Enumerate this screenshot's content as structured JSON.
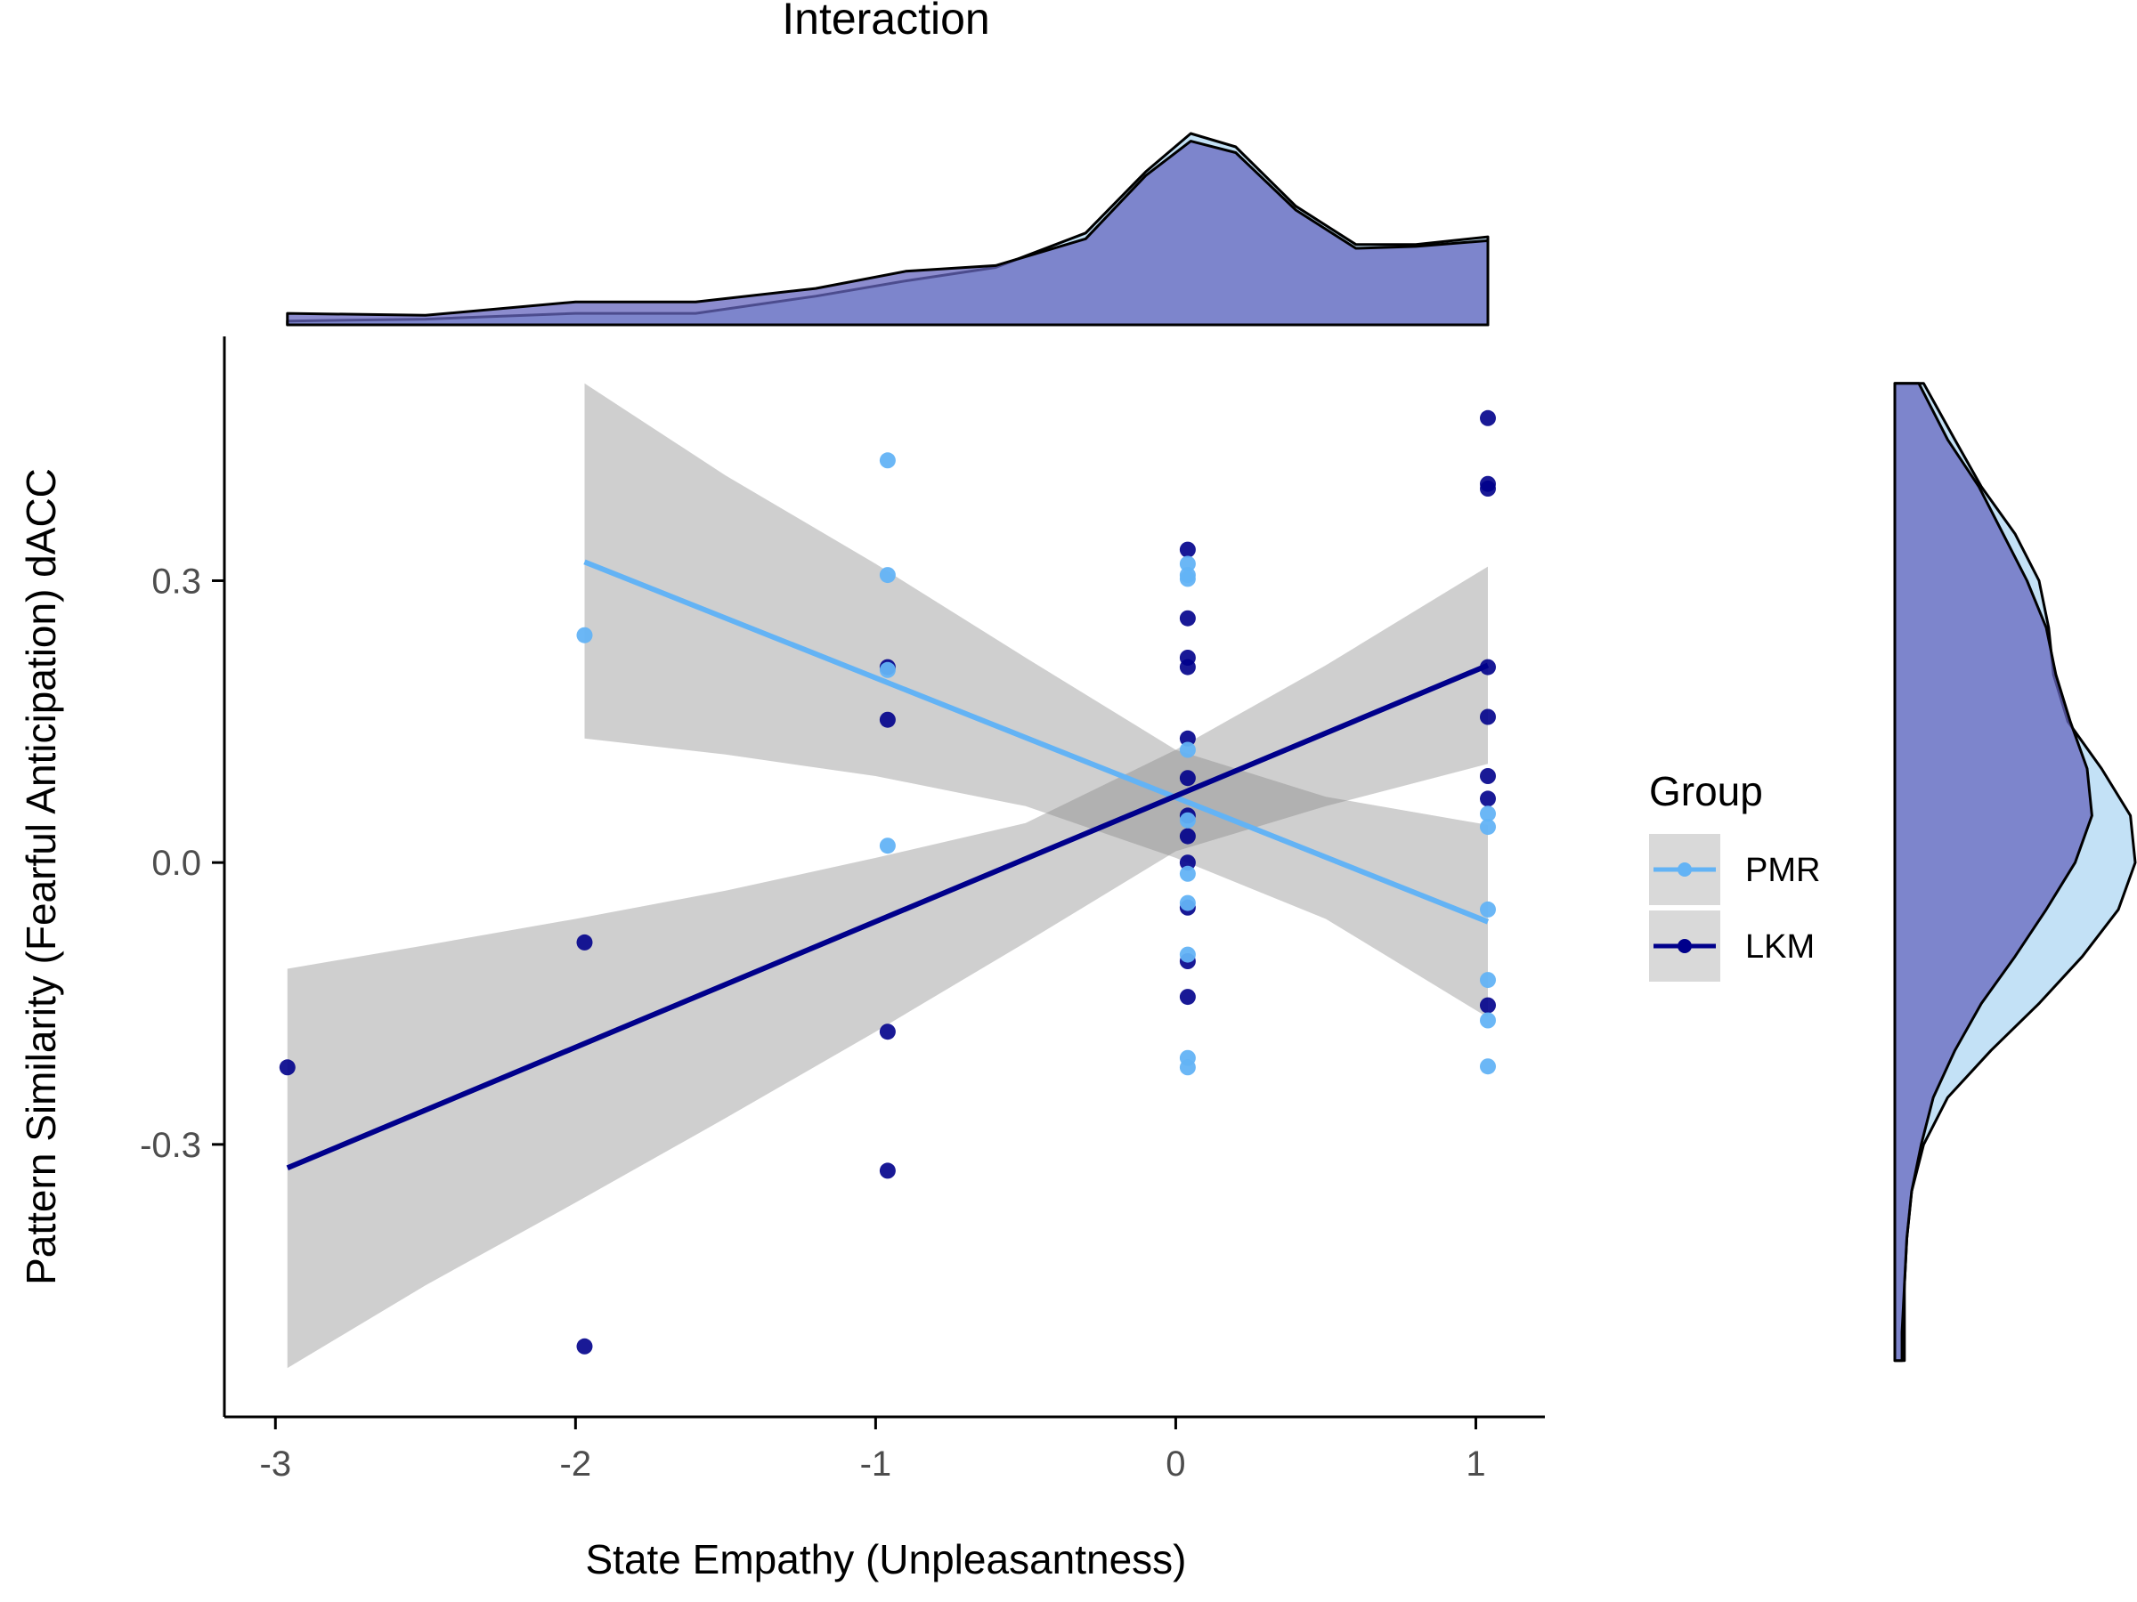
{
  "chart_data": {
    "type": "scatter",
    "title": "Interaction",
    "xlabel": "State Empathy (Unpleasantness)",
    "ylabel": "Pattern Similarity (Fearful Anticipation) dACC",
    "xlim": [
      -3.17,
      1.23
    ],
    "ylim": [
      -0.59,
      0.56
    ],
    "x_ticks": [
      -3,
      -2,
      -1,
      0,
      1
    ],
    "x_tick_labels": [
      "-3",
      "-2",
      "-1",
      "0",
      "1"
    ],
    "y_ticks": [
      -0.3,
      0.0,
      0.3
    ],
    "y_tick_labels": [
      "-0.3",
      "0.0",
      "0.3"
    ],
    "grid": false,
    "legend": {
      "title": "Group",
      "position": "right",
      "entries": [
        {
          "label": "PMR",
          "color": "#63b3f5"
        },
        {
          "label": "LKM",
          "color": "#00008b"
        }
      ]
    },
    "series": [
      {
        "name": "PMR",
        "color": "#63b3f5",
        "points": [
          {
            "x": -1.97,
            "y": 0.242
          },
          {
            "x": -0.96,
            "y": 0.428
          },
          {
            "x": -0.96,
            "y": 0.306
          },
          {
            "x": -0.96,
            "y": 0.205
          },
          {
            "x": -0.96,
            "y": 0.018
          },
          {
            "x": 0.04,
            "y": 0.318
          },
          {
            "x": 0.04,
            "y": 0.306
          },
          {
            "x": 0.04,
            "y": 0.302
          },
          {
            "x": 0.04,
            "y": 0.12
          },
          {
            "x": 0.04,
            "y": 0.045
          },
          {
            "x": 0.04,
            "y": -0.012
          },
          {
            "x": 0.04,
            "y": -0.043
          },
          {
            "x": 0.04,
            "y": -0.098
          },
          {
            "x": 0.04,
            "y": -0.208
          },
          {
            "x": 0.04,
            "y": -0.218
          },
          {
            "x": 1.04,
            "y": 0.052
          },
          {
            "x": 1.04,
            "y": 0.038
          },
          {
            "x": 1.04,
            "y": -0.05
          },
          {
            "x": 1.04,
            "y": -0.125
          },
          {
            "x": 1.04,
            "y": -0.168
          },
          {
            "x": 1.04,
            "y": -0.217
          }
        ],
        "fit": {
          "x": [
            -1.97,
            1.04
          ],
          "y": [
            0.32,
            -0.063
          ]
        },
        "ci_band": {
          "x": [
            -1.97,
            -1.5,
            -1.0,
            -0.5,
            0.0,
            0.5,
            1.04
          ],
          "lower": [
            0.132,
            0.115,
            0.092,
            0.06,
            0.005,
            -0.06,
            -0.165
          ],
          "upper": [
            0.51,
            0.412,
            0.318,
            0.218,
            0.12,
            0.07,
            0.04
          ]
        }
      },
      {
        "name": "LKM",
        "color": "#00008b",
        "points": [
          {
            "x": -2.96,
            "y": -0.218
          },
          {
            "x": -1.97,
            "y": -0.085
          },
          {
            "x": -1.97,
            "y": -0.515
          },
          {
            "x": -0.96,
            "y": 0.208
          },
          {
            "x": -0.96,
            "y": 0.152
          },
          {
            "x": -0.96,
            "y": -0.18
          },
          {
            "x": -0.96,
            "y": -0.328
          },
          {
            "x": 0.04,
            "y": 0.333
          },
          {
            "x": 0.04,
            "y": 0.26
          },
          {
            "x": 0.04,
            "y": 0.218
          },
          {
            "x": 0.04,
            "y": 0.208
          },
          {
            "x": 0.04,
            "y": 0.132
          },
          {
            "x": 0.04,
            "y": 0.09
          },
          {
            "x": 0.04,
            "y": 0.05
          },
          {
            "x": 0.04,
            "y": 0.028
          },
          {
            "x": 0.04,
            "y": 0.0
          },
          {
            "x": 0.04,
            "y": -0.048
          },
          {
            "x": 0.04,
            "y": -0.105
          },
          {
            "x": 0.04,
            "y": -0.143
          },
          {
            "x": 1.04,
            "y": 0.473
          },
          {
            "x": 1.04,
            "y": 0.403
          },
          {
            "x": 1.04,
            "y": 0.398
          },
          {
            "x": 1.04,
            "y": 0.208
          },
          {
            "x": 1.04,
            "y": 0.155
          },
          {
            "x": 1.04,
            "y": 0.092
          },
          {
            "x": 1.04,
            "y": 0.068
          },
          {
            "x": 1.04,
            "y": -0.152
          }
        ],
        "fit": {
          "x": [
            -2.96,
            1.04
          ],
          "y": [
            -0.325,
            0.21
          ]
        },
        "ci_band": {
          "x": [
            -2.96,
            -2.5,
            -2.0,
            -1.5,
            -1.0,
            -0.5,
            0.0,
            0.5,
            1.04
          ],
          "lower": [
            -0.538,
            -0.45,
            -0.362,
            -0.272,
            -0.18,
            -0.085,
            0.012,
            0.06,
            0.105
          ],
          "upper": [
            -0.113,
            -0.088,
            -0.06,
            -0.03,
            0.005,
            0.042,
            0.12,
            0.21,
            0.315
          ]
        }
      }
    ],
    "top_density": {
      "x": [
        -2.96,
        -2.5,
        -2.0,
        -1.6,
        -1.2,
        -0.9,
        -0.6,
        -0.3,
        -0.1,
        0.05,
        0.2,
        0.4,
        0.6,
        0.8,
        1.04
      ],
      "PMR": [
        0.02,
        0.03,
        0.06,
        0.06,
        0.15,
        0.23,
        0.3,
        0.48,
        0.8,
        1.0,
        0.93,
        0.62,
        0.42,
        0.42,
        0.46
      ],
      "LKM": [
        0.06,
        0.05,
        0.12,
        0.12,
        0.19,
        0.28,
        0.31,
        0.45,
        0.78,
        0.96,
        0.9,
        0.6,
        0.4,
        0.41,
        0.44
      ]
    },
    "right_density": {
      "y": [
        0.51,
        0.45,
        0.4,
        0.35,
        0.3,
        0.25,
        0.2,
        0.15,
        0.1,
        0.05,
        0.0,
        -0.05,
        -0.1,
        -0.15,
        -0.2,
        -0.25,
        -0.3,
        -0.35,
        -0.4,
        -0.45,
        -0.5,
        -0.53
      ],
      "PMR": [
        0.12,
        0.25,
        0.36,
        0.5,
        0.6,
        0.64,
        0.66,
        0.72,
        0.86,
        0.98,
        1.0,
        0.93,
        0.78,
        0.6,
        0.4,
        0.22,
        0.12,
        0.07,
        0.05,
        0.04,
        0.04,
        0.04
      ],
      "LKM": [
        0.1,
        0.22,
        0.35,
        0.45,
        0.55,
        0.63,
        0.67,
        0.73,
        0.8,
        0.82,
        0.75,
        0.63,
        0.5,
        0.36,
        0.25,
        0.16,
        0.11,
        0.07,
        0.05,
        0.04,
        0.03,
        0.03
      ]
    }
  }
}
